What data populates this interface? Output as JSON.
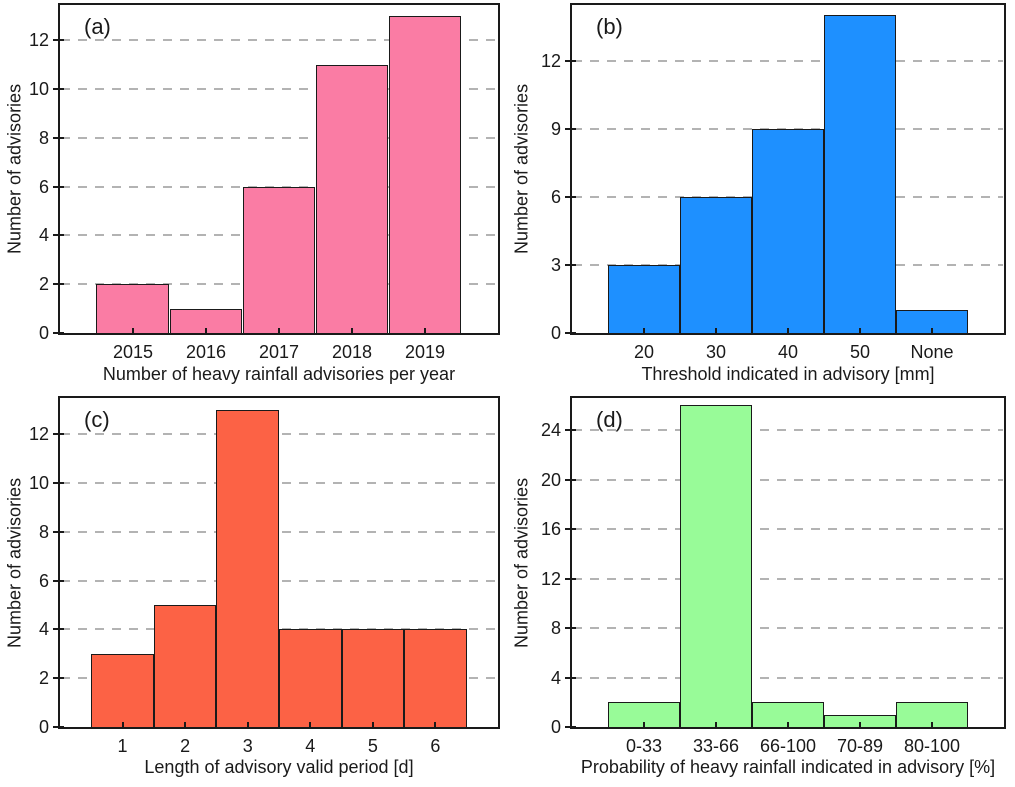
{
  "figure": {
    "background": "#ffffff",
    "frame_color": "#1a1a1a",
    "grid_color": "#b3b3b3",
    "grid_style": "dashed-horizontal"
  },
  "chart_data": [
    {
      "id": "a",
      "letter": "(a)",
      "type": "bar",
      "categories": [
        "2015",
        "2016",
        "2017",
        "2018",
        "2019"
      ],
      "values": [
        2,
        1,
        6,
        11,
        13
      ],
      "xlabel": "Number of heavy rainfall advisories per year",
      "ylabel": "Number of advisories",
      "yticks": [
        0,
        2,
        4,
        6,
        8,
        10,
        12
      ],
      "ylim": [
        0,
        13.45
      ],
      "bar_color": "#fa7ca4",
      "grid": true,
      "legend": "none"
    },
    {
      "id": "b",
      "letter": "(b)",
      "type": "bar",
      "categories": [
        "20",
        "30",
        "40",
        "50",
        "None"
      ],
      "values": [
        3,
        6,
        9,
        14,
        1
      ],
      "xlabel": "Threshold indicated in advisory [mm]",
      "ylabel": "Number of advisories",
      "yticks": [
        0,
        3,
        6,
        9,
        12
      ],
      "ylim": [
        0,
        14.45
      ],
      "bar_color": "#1e90ff",
      "grid": true,
      "legend": "none"
    },
    {
      "id": "c",
      "letter": "(c)",
      "type": "bar",
      "categories": [
        "1",
        "2",
        "3",
        "4",
        "5",
        "6"
      ],
      "values": [
        3,
        5,
        13,
        4,
        4,
        4
      ],
      "xlabel": "Length of advisory valid period [d]",
      "ylabel": "Number of advisories",
      "yticks": [
        0,
        2,
        4,
        6,
        8,
        10,
        12
      ],
      "ylim": [
        0,
        13.48
      ],
      "bar_color": "#fc6245",
      "grid": true,
      "legend": "none"
    },
    {
      "id": "d",
      "letter": "(d)",
      "type": "bar",
      "categories": [
        "0-33",
        "33-66",
        "66-100",
        "70-89",
        "80-100"
      ],
      "values": [
        2,
        26,
        2,
        1,
        2
      ],
      "xlabel": "Probability of heavy rainfall indicated in advisory [%]",
      "ylabel": "Number of advisories",
      "yticks": [
        0,
        4,
        8,
        12,
        16,
        20,
        24
      ],
      "ylim": [
        0,
        26.6
      ],
      "bar_color": "#98fb98",
      "grid": true,
      "legend": "none"
    }
  ]
}
